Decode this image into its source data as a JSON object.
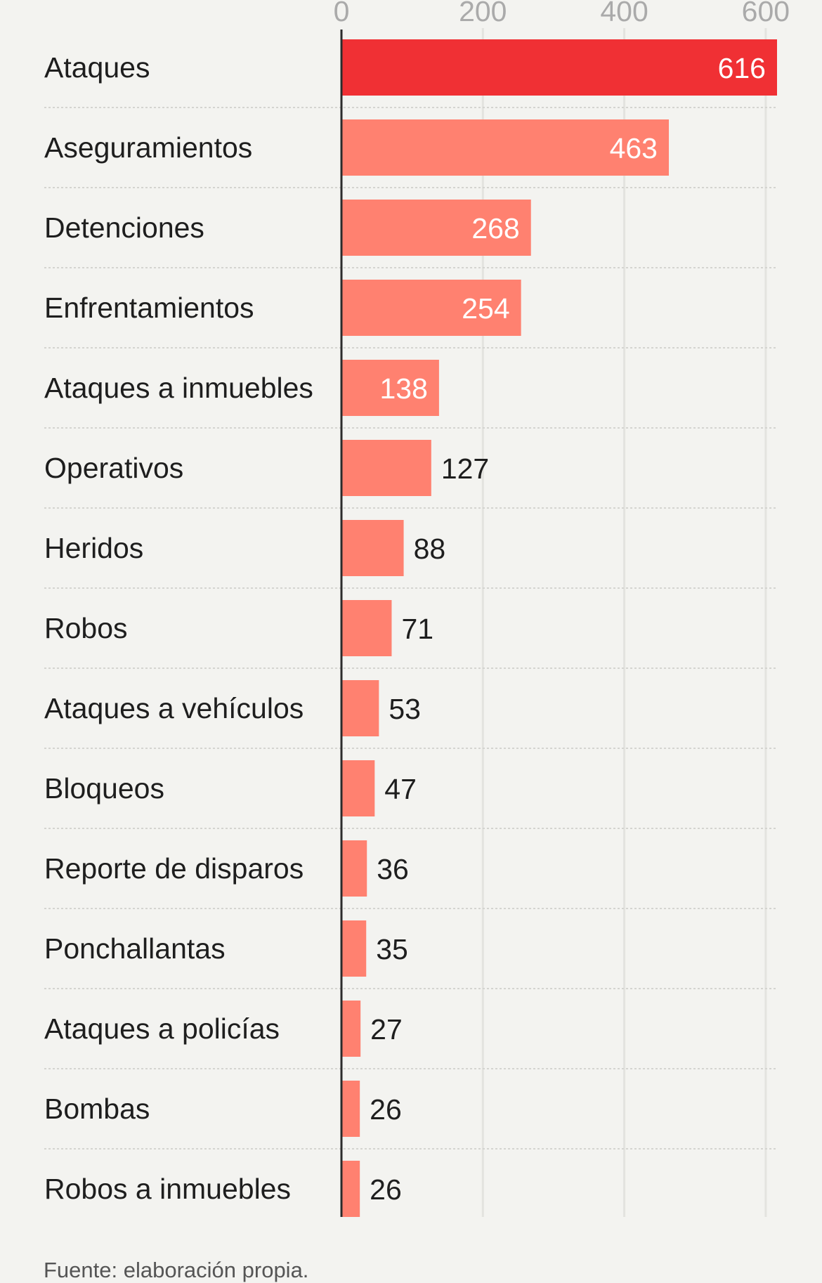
{
  "chart_data": {
    "type": "bar",
    "orientation": "horizontal",
    "categories": [
      "Ataques",
      "Aseguramientos",
      "Detenciones",
      "Enfrentamientos",
      "Ataques a inmuebles",
      "Operativos",
      "Heridos",
      "Robos",
      "Ataques a vehículos",
      "Bloqueos",
      "Reporte de disparos",
      "Ponchallantas",
      "Ataques a policías",
      "Bombas",
      "Robos a inmuebles"
    ],
    "values": [
      616,
      463,
      268,
      254,
      138,
      127,
      88,
      71,
      53,
      47,
      36,
      35,
      27,
      26,
      26
    ],
    "xticks": [
      0,
      200,
      400,
      600
    ],
    "xlim": [
      0,
      616
    ],
    "grid": true,
    "highlight_index": 0,
    "colors": {
      "highlight": "#f03034",
      "bar": "#ff8170",
      "value_inside": "#ffffff",
      "value_outside": "#1e1e1e",
      "gridline": "#e3e3df",
      "separator": "#d4d4d0",
      "axis": "#2b2b2b",
      "tick": "#aaaaaa"
    }
  },
  "source": "Fuente: elaboración propia."
}
